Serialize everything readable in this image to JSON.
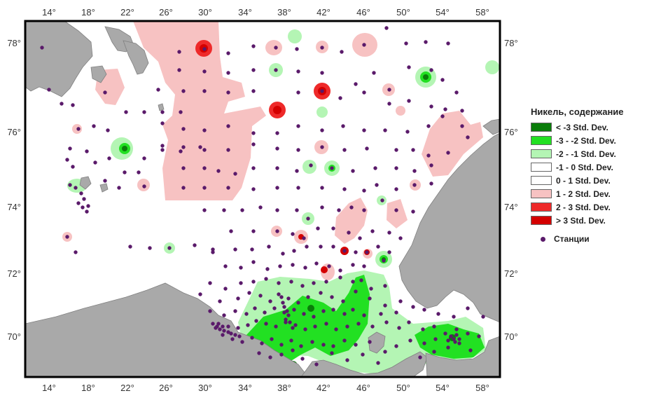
{
  "legend": {
    "title": "Никель, содержание",
    "classes": [
      {
        "label": "< -3 Std. Dev.",
        "color": "#0a7d0a"
      },
      {
        "label": "-3 - -2 Std. Dev.",
        "color": "#22e022"
      },
      {
        "label": "-2 - -1 Std. Dev.",
        "color": "#b4f5b4"
      },
      {
        "label": "-1 - 0 Std. Dev.",
        "color": "#ffffff"
      },
      {
        "label": "0 - 1 Std. Dev.",
        "color": "#ffffff"
      },
      {
        "label": "1 - 2 Std. Dev.",
        "color": "#f7c2c2"
      },
      {
        "label": "2 - 3 Std. Dev.",
        "color": "#ee2a2a"
      },
      {
        "label": "> 3 Std. Dev.",
        "color": "#d40000"
      }
    ],
    "stations_label": "Станции",
    "station_color": "#5a1a6a"
  },
  "axes": {
    "x_ticks": [
      "14°",
      "18°",
      "22°",
      "26°",
      "30°",
      "34°",
      "38°",
      "42°",
      "46°",
      "50°",
      "54°",
      "58°"
    ],
    "y_ticks": [
      "78°",
      "76°",
      "74°",
      "72°",
      "70°"
    ]
  },
  "colors": {
    "land": "#a9a9a9",
    "land_edge": "#808080",
    "frame": "#000000"
  }
}
